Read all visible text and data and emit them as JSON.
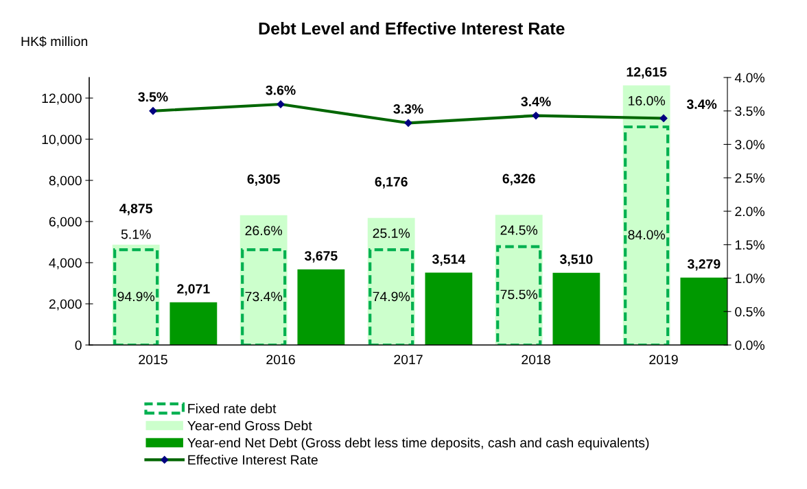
{
  "chart_data": {
    "type": "bar",
    "title": "Debt Level and Effective Interest Rate",
    "ylabel": "HK$ million",
    "categories": [
      "2015",
      "2016",
      "2017",
      "2018",
      "2019"
    ],
    "series": [
      {
        "name": "Fixed rate debt",
        "type": "bar",
        "color": "#00b050",
        "line_style": "dashed",
        "values": [
          4630,
          4630,
          4630,
          4780,
          10600
        ]
      },
      {
        "name": "Year-end Gross Debt",
        "type": "bar",
        "color": "#ccffcc",
        "values": [
          4875,
          6305,
          6176,
          6326,
          12615
        ],
        "value_labels": [
          "4,875",
          "6,305",
          "6,176",
          "6,326",
          "12,615"
        ]
      },
      {
        "name": "Year-end Net Debt (Gross debt less time deposits, cash and cash equivalents)",
        "type": "bar",
        "color": "#009900",
        "values": [
          2071,
          3675,
          3514,
          3510,
          3279
        ],
        "value_labels": [
          "2,071",
          "3,675",
          "3,514",
          "3,510",
          "3,279"
        ]
      },
      {
        "name": "Effective Interest Rate",
        "type": "line",
        "axis": "y2",
        "color": "#006600",
        "marker": "diamond",
        "values": [
          3.5,
          3.6,
          3.32,
          3.43,
          3.39
        ],
        "value_labels": [
          "3.5%",
          "3.6%",
          "3.3%",
          "3.4%",
          "3.4%"
        ]
      }
    ],
    "annotations": [
      {
        "text": "94.9%",
        "x": "2015",
        "y": 2300
      },
      {
        "text": "73.4%",
        "x": "2016",
        "y": 2300
      },
      {
        "text": "74.9%",
        "x": "2017",
        "y": 2300
      },
      {
        "text": "75.5%",
        "x": "2018",
        "y": 2400
      },
      {
        "text": "84.0%",
        "x": "2019",
        "y": 5300
      },
      {
        "text": "5.1%",
        "x": "2015",
        "y": 4875
      },
      {
        "text": "26.6%",
        "x": "2016",
        "y": 6305
      },
      {
        "text": "25.1%",
        "x": "2017",
        "y": 6176
      },
      {
        "text": "24.5%",
        "x": "2018",
        "y": 6326
      },
      {
        "text": "16.0%",
        "x": "2019",
        "y": 12615
      }
    ],
    "ylim": [
      0,
      13000
    ],
    "yticks": [
      0,
      {
        "value": 2000,
        "label": "2,000"
      },
      {
        "value": 4000,
        "label": "4,000"
      },
      {
        "value": 6000,
        "label": "6,000"
      },
      {
        "value": 8000,
        "label": "8,000"
      },
      {
        "value": 10000,
        "label": "10,000"
      },
      {
        "value": 12000,
        "label": "12,000"
      }
    ],
    "y2lim": [
      0,
      4.0
    ],
    "y2ticks": [
      {
        "value": 0,
        "label": "0.0%"
      },
      {
        "value": 0.5,
        "label": "0.5%"
      },
      {
        "value": 1.0,
        "label": "1.0%"
      },
      {
        "value": 1.5,
        "label": "1.5%"
      },
      {
        "value": 2.0,
        "label": "2.0%"
      },
      {
        "value": 2.5,
        "label": "2.5%"
      },
      {
        "value": 3.0,
        "label": "3.0%"
      },
      {
        "value": 3.5,
        "label": "3.5%"
      },
      {
        "value": 4.0,
        "label": "4.0%"
      }
    ],
    "grid": false,
    "legend": "bottom"
  }
}
